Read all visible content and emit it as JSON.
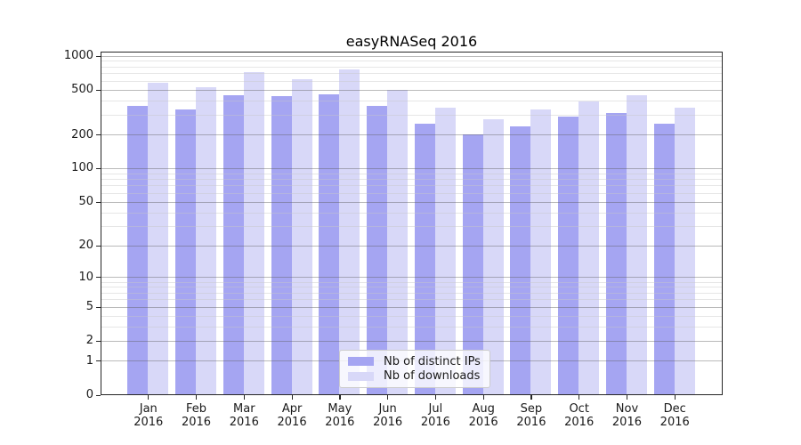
{
  "title": "easyRNASeq 2016",
  "chart_data": {
    "type": "bar",
    "title": "easyRNASeq 2016",
    "categories": [
      "Jan 2016",
      "Feb 2016",
      "Mar 2016",
      "Apr 2016",
      "May 2016",
      "Jun 2016",
      "Jul 2016",
      "Aug 2016",
      "Sep 2016",
      "Oct 2016",
      "Nov 2016",
      "Dec 2016"
    ],
    "month_labels": [
      "Jan",
      "Feb",
      "Mar",
      "Apr",
      "May",
      "Jun",
      "Jul",
      "Aug",
      "Sep",
      "Oct",
      "Nov",
      "Dec"
    ],
    "year_label": "2016",
    "series": [
      {
        "name": "Nb of distinct IPs",
        "color": "#a5a5f2",
        "values": [
          357,
          333,
          449,
          440,
          458,
          361,
          248,
          201,
          234,
          289,
          308,
          250
        ]
      },
      {
        "name": "Nb of downloads",
        "color": "#d8d8f8",
        "values": [
          577,
          528,
          717,
          620,
          757,
          499,
          346,
          271,
          333,
          390,
          445,
          343
        ]
      }
    ],
    "y_axis": {
      "scale": "log10(1+x)",
      "ticks": [
        0,
        1,
        2,
        5,
        10,
        20,
        50,
        100,
        200,
        500,
        1000
      ],
      "minor_ticks": [
        3,
        4,
        6,
        7,
        8,
        9,
        30,
        40,
        60,
        70,
        80,
        90,
        300,
        400,
        600,
        700,
        800,
        900
      ],
      "limit_top": 1100
    },
    "grid": "both",
    "legend_position": "lower-center-inside",
    "colors": {
      "bar_distinct_ips": "#a5a5f2",
      "bar_downloads": "#d8d8f8",
      "spine": "#262626"
    }
  }
}
